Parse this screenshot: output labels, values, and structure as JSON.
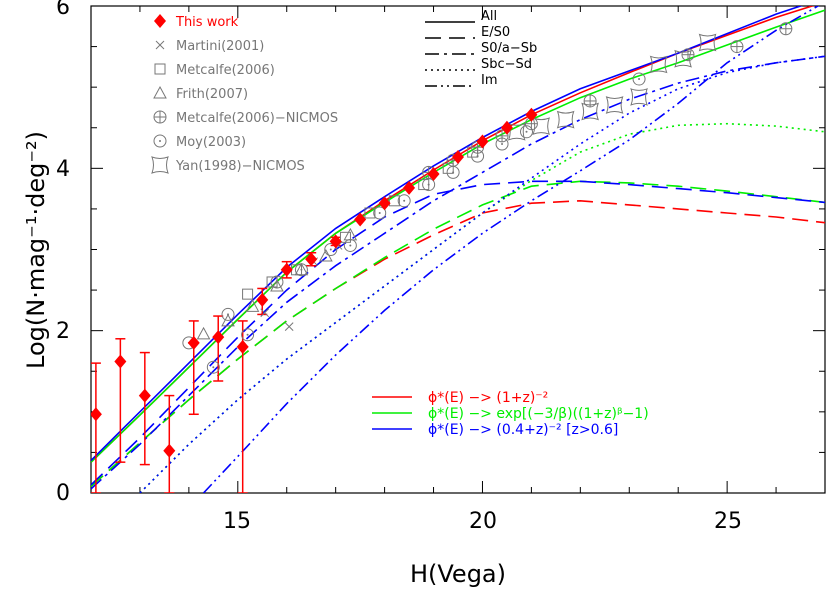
{
  "chart_data": {
    "type": "line",
    "xlabel": "H(Vega)",
    "ylabel": "Log(N·mag⁻¹·deg⁻²)",
    "xlim": [
      12,
      27
    ],
    "ylim": [
      0,
      6
    ],
    "x_ticks": [
      15,
      20,
      25
    ],
    "y_ticks": [
      0,
      2,
      4,
      6
    ],
    "colors": {
      "red": "#ff0000",
      "green": "#00ee00",
      "blue": "#0000ff",
      "gray": "#777777"
    },
    "observations": [
      {
        "name": "This work",
        "marker": "diamond",
        "color": "#ff0000",
        "points": [
          {
            "x": 12.1,
            "y": 0.97,
            "lo": 0.0,
            "hi": 1.6
          },
          {
            "x": 12.6,
            "y": 1.62,
            "lo": 0.38,
            "hi": 1.9
          },
          {
            "x": 13.1,
            "y": 1.2,
            "lo": 0.35,
            "hi": 1.73
          },
          {
            "x": 13.6,
            "y": 0.52,
            "lo": 0.0,
            "hi": 1.2
          },
          {
            "x": 14.1,
            "y": 1.85,
            "lo": 0.97,
            "hi": 2.12
          },
          {
            "x": 14.6,
            "y": 1.92,
            "lo": 1.38,
            "hi": 2.18
          },
          {
            "x": 15.1,
            "y": 1.8,
            "lo": 0.0,
            "hi": 2.12
          },
          {
            "x": 15.5,
            "y": 2.38,
            "lo": 2.2,
            "hi": 2.52
          },
          {
            "x": 16.0,
            "y": 2.75,
            "lo": 2.65,
            "hi": 2.85
          },
          {
            "x": 16.5,
            "y": 2.88,
            "lo": 2.8,
            "hi": 2.96
          },
          {
            "x": 17.0,
            "y": 3.1,
            "lo": 3.05,
            "hi": 3.15
          },
          {
            "x": 17.5,
            "y": 3.37
          },
          {
            "x": 18.0,
            "y": 3.57
          },
          {
            "x": 18.5,
            "y": 3.76
          },
          {
            "x": 19.0,
            "y": 3.93
          },
          {
            "x": 19.5,
            "y": 4.14
          },
          {
            "x": 20.0,
            "y": 4.33
          },
          {
            "x": 20.5,
            "y": 4.5
          },
          {
            "x": 21.0,
            "y": 4.66
          }
        ]
      },
      {
        "name": "Martini(2001)",
        "marker": "cross",
        "color": "#777777",
        "points": [
          {
            "x": 15.55,
            "y": 2.22
          },
          {
            "x": 16.05,
            "y": 2.05
          },
          {
            "x": 16.55,
            "y": 2.85
          },
          {
            "x": 17.05,
            "y": 3.05
          }
        ]
      },
      {
        "name": "Metcalfe(2006)",
        "marker": "square",
        "color": "#777777",
        "points": [
          {
            "x": 15.2,
            "y": 2.45
          },
          {
            "x": 15.7,
            "y": 2.6
          },
          {
            "x": 16.2,
            "y": 2.75
          },
          {
            "x": 17.2,
            "y": 3.15
          },
          {
            "x": 17.7,
            "y": 3.45
          },
          {
            "x": 18.2,
            "y": 3.6
          },
          {
            "x": 18.8,
            "y": 3.8
          },
          {
            "x": 19.3,
            "y": 4.0
          },
          {
            "x": 19.8,
            "y": 4.2
          }
        ]
      },
      {
        "name": "Frith(2007)",
        "marker": "triangle",
        "color": "#777777",
        "points": [
          {
            "x": 14.3,
            "y": 1.96
          },
          {
            "x": 14.8,
            "y": 2.12
          },
          {
            "x": 15.3,
            "y": 2.3
          },
          {
            "x": 15.8,
            "y": 2.55
          },
          {
            "x": 16.3,
            "y": 2.75
          },
          {
            "x": 16.8,
            "y": 2.92
          },
          {
            "x": 17.3,
            "y": 3.18
          }
        ]
      },
      {
        "name": "Metcalfe(2006)−NICMOS",
        "marker": "circleplus",
        "color": "#777777",
        "points": [
          {
            "x": 18.9,
            "y": 3.95
          },
          {
            "x": 19.4,
            "y": 4.1
          },
          {
            "x": 19.9,
            "y": 4.26
          },
          {
            "x": 20.4,
            "y": 4.4
          },
          {
            "x": 21.0,
            "y": 4.55
          },
          {
            "x": 22.2,
            "y": 4.83
          },
          {
            "x": 24.2,
            "y": 5.4
          },
          {
            "x": 25.2,
            "y": 5.5
          },
          {
            "x": 26.2,
            "y": 5.72
          }
        ]
      },
      {
        "name": "Moy(2003)",
        "marker": "circledot",
        "color": "#777777",
        "points": [
          {
            "x": 14.0,
            "y": 1.85
          },
          {
            "x": 14.5,
            "y": 1.55
          },
          {
            "x": 14.8,
            "y": 2.2
          },
          {
            "x": 15.2,
            "y": 1.95
          },
          {
            "x": 15.8,
            "y": 2.6
          },
          {
            "x": 16.3,
            "y": 2.75
          },
          {
            "x": 16.9,
            "y": 3.0
          },
          {
            "x": 17.3,
            "y": 3.05
          },
          {
            "x": 17.9,
            "y": 3.45
          },
          {
            "x": 18.4,
            "y": 3.6
          },
          {
            "x": 18.9,
            "y": 3.8
          },
          {
            "x": 19.4,
            "y": 3.95
          },
          {
            "x": 19.9,
            "y": 4.15
          },
          {
            "x": 20.4,
            "y": 4.3
          },
          {
            "x": 20.9,
            "y": 4.45
          },
          {
            "x": 23.2,
            "y": 5.1
          }
        ]
      },
      {
        "name": "Yan(1998)−NICMOS",
        "marker": "starsquare",
        "color": "#777777",
        "points": [
          {
            "x": 20.7,
            "y": 4.45
          },
          {
            "x": 21.2,
            "y": 4.52
          },
          {
            "x": 21.7,
            "y": 4.6
          },
          {
            "x": 22.2,
            "y": 4.7
          },
          {
            "x": 22.7,
            "y": 4.78
          },
          {
            "x": 23.2,
            "y": 4.88
          },
          {
            "x": 23.6,
            "y": 5.28
          },
          {
            "x": 24.1,
            "y": 5.35
          },
          {
            "x": 24.6,
            "y": 5.55
          }
        ]
      }
    ],
    "line_legend": [
      "All",
      "E/S0",
      "S0/a−Sb",
      "Sbc−Sd",
      "Im"
    ],
    "model_legend": [
      {
        "label": "ϕ*(E) −> (1+z)⁻²",
        "color": "#ff0000"
      },
      {
        "label": "ϕ*(E) −> exp[(−3/β)((1+z)ᵝ−1)",
        "color": "#00ee00"
      },
      {
        "label": "ϕ*(E) −> (0.4+z)⁻² [z>0.6]",
        "color": "#0000ff"
      }
    ],
    "series": [
      {
        "name": "All (red)",
        "style": "solid",
        "color": "#ff0000",
        "x": [
          12,
          13,
          14,
          15,
          16,
          17,
          18,
          19,
          20,
          21,
          22,
          23,
          24,
          25,
          26,
          27
        ],
        "y": [
          0.38,
          0.96,
          1.55,
          2.14,
          2.72,
          3.2,
          3.6,
          3.98,
          4.34,
          4.66,
          4.93,
          5.18,
          5.42,
          5.64,
          5.86,
          6.05
        ]
      },
      {
        "name": "All (green)",
        "style": "solid",
        "color": "#00ee00",
        "x": [
          12,
          13,
          14,
          15,
          16,
          17,
          18,
          19,
          20,
          21,
          22,
          23,
          24,
          25,
          26,
          27
        ],
        "y": [
          0.38,
          0.96,
          1.55,
          2.14,
          2.72,
          3.2,
          3.58,
          3.95,
          4.3,
          4.6,
          4.87,
          5.1,
          5.3,
          5.52,
          5.74,
          5.95
        ]
      },
      {
        "name": "All (blue)",
        "style": "solid",
        "color": "#0000ff",
        "x": [
          12,
          13,
          14,
          15,
          16,
          17,
          18,
          19,
          20,
          21,
          22,
          23,
          24,
          25,
          26,
          27
        ],
        "y": [
          0.4,
          1.0,
          1.6,
          2.2,
          2.78,
          3.26,
          3.65,
          4.03,
          4.38,
          4.7,
          4.98,
          5.2,
          5.42,
          5.66,
          5.9,
          6.1
        ]
      },
      {
        "name": "E/S0 (red)",
        "style": "dashed",
        "color": "#ff0000",
        "x": [
          12,
          13,
          14,
          15,
          16,
          17,
          18,
          19,
          20,
          21,
          22,
          23,
          24,
          25,
          26,
          27
        ],
        "y": [
          0.08,
          0.62,
          1.15,
          1.65,
          2.12,
          2.52,
          2.88,
          3.18,
          3.45,
          3.57,
          3.6,
          3.55,
          3.5,
          3.45,
          3.4,
          3.33
        ]
      },
      {
        "name": "E/S0 (green)",
        "style": "dashed",
        "color": "#00ee00",
        "x": [
          12,
          13,
          14,
          15,
          16,
          17,
          18,
          19,
          20,
          21,
          22,
          23,
          24,
          25,
          26,
          27
        ],
        "y": [
          0.08,
          0.62,
          1.15,
          1.65,
          2.12,
          2.52,
          2.9,
          3.25,
          3.55,
          3.78,
          3.84,
          3.82,
          3.78,
          3.72,
          3.65,
          3.58
        ]
      },
      {
        "name": "E/S0 (blue)",
        "style": "dashed",
        "color": "#0000ff",
        "x": [
          12,
          13,
          14,
          15,
          16,
          17,
          18,
          19,
          20,
          21,
          22,
          23,
          24,
          25,
          26,
          27
        ],
        "y": [
          0.1,
          0.68,
          1.3,
          1.92,
          2.5,
          3.0,
          3.4,
          3.68,
          3.8,
          3.84,
          3.84,
          3.8,
          3.75,
          3.7,
          3.64,
          3.58
        ]
      },
      {
        "name": "S0/a−Sb (blue)",
        "style": "dashdot",
        "color": "#0000ff",
        "x": [
          12,
          13,
          14,
          15,
          16,
          17,
          18,
          19,
          20,
          21,
          22,
          23,
          24,
          25,
          26,
          27
        ],
        "y": [
          0.05,
          0.6,
          1.2,
          1.8,
          2.35,
          2.8,
          3.2,
          3.6,
          3.95,
          4.3,
          4.6,
          4.85,
          5.05,
          5.2,
          5.3,
          5.38
        ]
      },
      {
        "name": "Sbc−Sd (green)",
        "style": "dotted",
        "color": "#00ee00",
        "x": [
          13,
          14,
          15,
          16,
          17,
          18,
          19,
          20,
          21,
          22,
          23,
          24,
          25,
          26,
          27
        ],
        "y": [
          0.0,
          0.6,
          1.15,
          1.65,
          2.1,
          2.55,
          3.0,
          3.45,
          3.85,
          4.2,
          4.42,
          4.53,
          4.55,
          4.52,
          4.45
        ]
      },
      {
        "name": "Sbc−Sd (blue)",
        "style": "dotted",
        "color": "#0000ff",
        "x": [
          13,
          14,
          15,
          16,
          17,
          18,
          19,
          20,
          21,
          22,
          23,
          24,
          25,
          26,
          27
        ],
        "y": [
          0.0,
          0.6,
          1.15,
          1.65,
          2.1,
          2.55,
          3.0,
          3.45,
          3.88,
          4.3,
          4.68,
          4.98,
          5.18,
          5.3,
          5.38
        ]
      },
      {
        "name": "Im (blue)",
        "style": "dashdotdot",
        "color": "#0000ff",
        "x": [
          14.3,
          15,
          16,
          17,
          18,
          19,
          20,
          21,
          22,
          23,
          24,
          25,
          26,
          27
        ],
        "y": [
          0.0,
          0.45,
          1.1,
          1.7,
          2.25,
          2.75,
          3.2,
          3.6,
          3.97,
          4.35,
          4.8,
          5.3,
          5.7,
          6.05
        ]
      }
    ]
  }
}
